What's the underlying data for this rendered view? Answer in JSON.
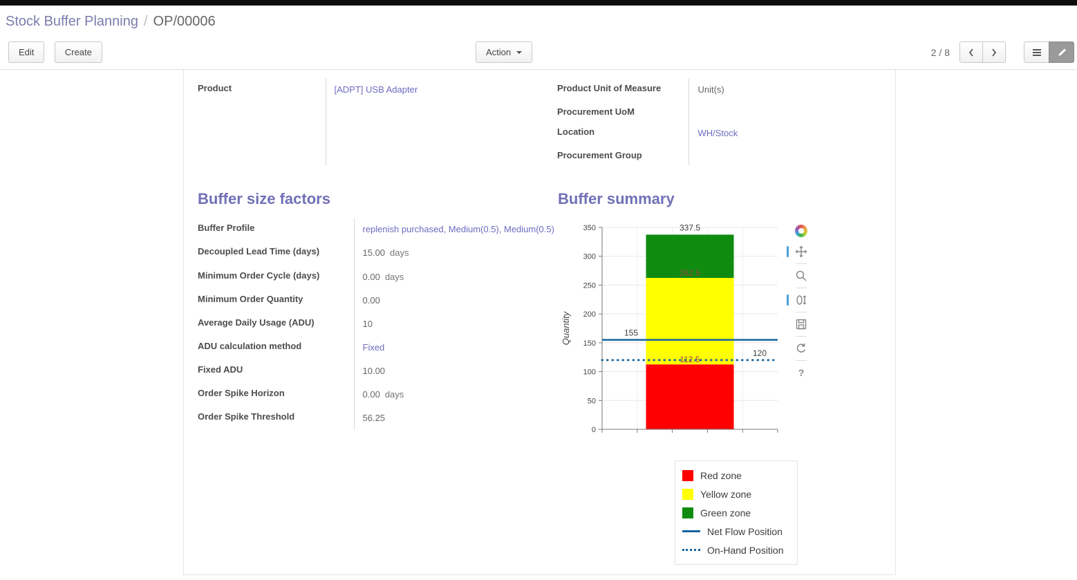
{
  "breadcrumb": {
    "section": "Stock Buffer Planning",
    "separator": "/",
    "record": "OP/00006"
  },
  "control_panel": {
    "edit_label": "Edit",
    "create_label": "Create",
    "action_label": "Action",
    "pager": "2 / 8"
  },
  "form": {
    "product": {
      "label": "Product",
      "value": "[ADPT] USB Adapter"
    },
    "right_fields": [
      {
        "label": "Product Unit of Measure",
        "value": "Unit(s)"
      },
      {
        "label": "Procurement UoM",
        "value": ""
      },
      {
        "label": "Location",
        "value": "WH/Stock"
      },
      {
        "label": "Procurement Group",
        "value": ""
      }
    ],
    "buffer_factors": {
      "title": "Buffer size factors",
      "fields": [
        {
          "label": "Buffer Profile",
          "value": "replenish purchased, Medium(0.5), Medium(0.5)"
        },
        {
          "label": "Decoupled Lead Time (days)",
          "value": "15.00",
          "suffix": "days"
        },
        {
          "label": "Minimum Order Cycle (days)",
          "value": "0.00",
          "suffix": "days"
        },
        {
          "label": "Minimum Order Quantity",
          "value": "0.00"
        },
        {
          "label": "Average Daily Usage (ADU)",
          "value": "10"
        },
        {
          "label": "ADU calculation method",
          "value": "Fixed"
        },
        {
          "label": "Fixed ADU",
          "value": "10.00"
        },
        {
          "label": "Order Spike Horizon",
          "value": "0.00",
          "suffix": "days"
        },
        {
          "label": "Order Spike Threshold",
          "value": "56.25"
        }
      ]
    },
    "buffer_summary_title": "Buffer summary"
  },
  "chart_data": {
    "type": "bar",
    "title": "Buffer summary",
    "ylabel": "Quantity",
    "ylim": [
      0,
      350
    ],
    "yticks": [
      0,
      50,
      100,
      150,
      200,
      250,
      300,
      350
    ],
    "zones": [
      {
        "name": "Red zone",
        "from": 0,
        "to": 112.5,
        "color": "#ff0000"
      },
      {
        "name": "Yellow zone",
        "from": 112.5,
        "to": 262.5,
        "color": "#ffff00"
      },
      {
        "name": "Green zone",
        "from": 262.5,
        "to": 337.5,
        "color": "#0f8c0f"
      }
    ],
    "lines": [
      {
        "name": "Net Flow Position",
        "value": 155,
        "style": "solid",
        "color": "#1464a0"
      },
      {
        "name": "On-Hand Position",
        "value": 120,
        "style": "dotted",
        "color": "#1464a0"
      }
    ],
    "annotations": [
      337.5,
      262.5,
      155,
      120,
      112.5
    ],
    "legend": [
      "Red zone",
      "Yellow zone",
      "Green zone",
      "Net Flow Position",
      "On-Hand Position"
    ],
    "legend_position": "bottom-right",
    "grid": true
  }
}
